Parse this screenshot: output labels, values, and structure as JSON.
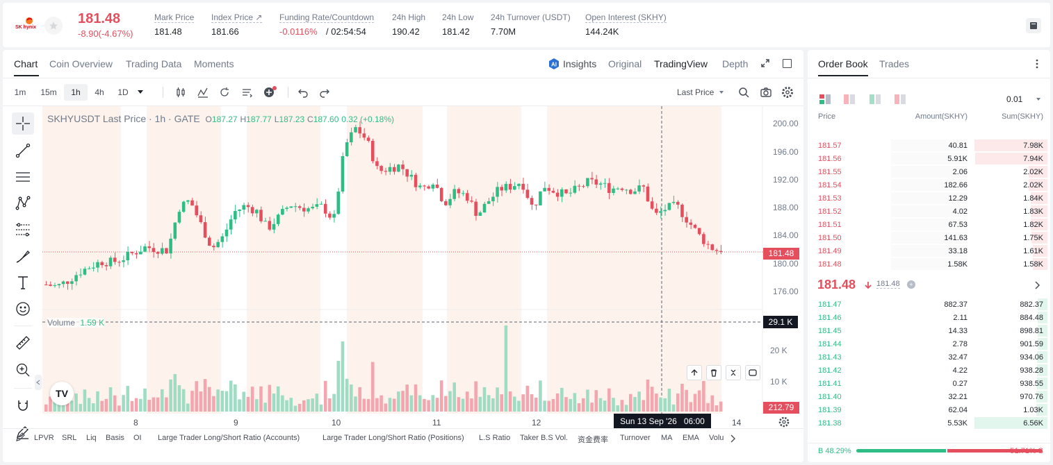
{
  "header": {
    "logo_text": "SK hynix",
    "last_price": "181.48",
    "change": "-8.90(-4.67%)",
    "stats": [
      {
        "label": "Mark Price",
        "value": "181.48"
      },
      {
        "label": "Index Price ↗",
        "value": "181.66"
      },
      {
        "label": "Funding Rate/Countdown",
        "value_a": "-0.0116%",
        "value_b": "/ 02:54:54"
      },
      {
        "label": "24h High",
        "value": "190.42"
      },
      {
        "label": "24h Low",
        "value": "181.42"
      },
      {
        "label": "24h Turnover (USDT)",
        "value": "7.70M"
      },
      {
        "label": "Open Interest (SKHY)",
        "value": "144.24K"
      }
    ]
  },
  "chart_tabs": [
    "Chart",
    "Coin Overview",
    "Trading Data",
    "Moments"
  ],
  "view_tabs": {
    "insights": "Insights",
    "original": "Original",
    "tradingview": "TradingView",
    "depth": "Depth"
  },
  "timeframes": [
    "1m",
    "15m",
    "1h",
    "4h",
    "1D"
  ],
  "selected_timeframe": "1h",
  "price_type": "Last Price",
  "legend": {
    "title": "SKHYUSDT Last Price · 1h · GATE",
    "o_label": "O",
    "o": "187.27",
    "h_label": "H",
    "h": "187.77",
    "l_label": "L",
    "l": "187.23",
    "c_label": "C",
    "c": "187.60",
    "chg": "0.32 (+0.18%)"
  },
  "volume_legend": {
    "label": "Volume",
    "value": "1.59 K"
  },
  "price_axis": [
    "200.00",
    "196.00",
    "192.00",
    "188.00",
    "184.00",
    "180.00",
    "176.00"
  ],
  "volume_axis": [
    "20 K",
    "10 K"
  ],
  "current_price_tag": "181.48",
  "volume_tag": "29.1 K",
  "volume_low_tag": "212.79",
  "time_axis": [
    "8",
    "9",
    "10",
    "11",
    "12",
    "14"
  ],
  "crosshair_time": "Sun 13 Sep '26   06:00",
  "tv_logo": "TV",
  "indicators": [
    "LPVR",
    "SRL",
    "Liq",
    "Basis",
    "OI",
    "Large Trader Long/Short Ratio (Accounts)",
    "Large Trader Long/Short Ratio (Positions)",
    "L.S Ratio",
    "Taker B.S Vol.",
    "资金费率",
    "Turnover",
    "MA",
    "EMA",
    "Volu"
  ],
  "chart_data": {
    "type": "candlestick",
    "title": "SKHYUSDT Last Price · 1h · GATE",
    "x_labels": [
      "8",
      "9",
      "10",
      "11",
      "12",
      "14"
    ],
    "ylim": [
      175,
      201
    ],
    "close_path": [
      176.8,
      176.5,
      177.4,
      178.6,
      179.4,
      180.1,
      180.0,
      180.6,
      181.4,
      182.2,
      181.9,
      181.7,
      187.8,
      188.9,
      185.4,
      182.0,
      183.6,
      187.2,
      188.1,
      187.4,
      184.8,
      186.4,
      188.3,
      187.9,
      187.6,
      188.0,
      186.0,
      196.6,
      199.3,
      197.5,
      193.0,
      193.5,
      193.9,
      192.1,
      190.5,
      191.8,
      188.5,
      190.1,
      189.6,
      186.8,
      188.8,
      190.5,
      190.9,
      191.6,
      187.7,
      191.0,
      190.2,
      189.6,
      190.5,
      191.5,
      191.3,
      190.5,
      190.9,
      190.3,
      190.7,
      186.6,
      187.7,
      188.1,
      186.0,
      183.9,
      182.2,
      181.48
    ],
    "volume": "indicative histogram, axis 0–30 K",
    "last_price": 181.48
  },
  "orderbook": {
    "tabs": [
      "Order Book",
      "Trades"
    ],
    "precision": "0.01",
    "columns": [
      "Price",
      "Amount(SKHY)",
      "Sum(SKHY)"
    ],
    "asks": [
      {
        "price": "181.57",
        "amount": "40.81",
        "sum": "7.98K",
        "depth": 1.0
      },
      {
        "price": "181.56",
        "amount": "5.91K",
        "sum": "7.94K",
        "depth": 0.995
      },
      {
        "price": "181.55",
        "amount": "2.06",
        "sum": "2.02K",
        "depth": 0.253
      },
      {
        "price": "181.54",
        "amount": "182.66",
        "sum": "2.02K",
        "depth": 0.253
      },
      {
        "price": "181.53",
        "amount": "12.29",
        "sum": "1.84K",
        "depth": 0.23
      },
      {
        "price": "181.52",
        "amount": "4.02",
        "sum": "1.83K",
        "depth": 0.229
      },
      {
        "price": "181.51",
        "amount": "67.53",
        "sum": "1.82K",
        "depth": 0.228
      },
      {
        "price": "181.50",
        "amount": "141.63",
        "sum": "1.75K",
        "depth": 0.219
      },
      {
        "price": "181.49",
        "amount": "33.18",
        "sum": "1.61K",
        "depth": 0.202
      },
      {
        "price": "181.48",
        "amount": "1.58K",
        "sum": "1.58K",
        "depth": 0.198
      }
    ],
    "mid_price": "181.48",
    "mid_mark": "181.48",
    "bids": [
      {
        "price": "181.47",
        "amount": "882.37",
        "sum": "882.37",
        "depth": 0.134
      },
      {
        "price": "181.46",
        "amount": "2.11",
        "sum": "884.48",
        "depth": 0.134
      },
      {
        "price": "181.45",
        "amount": "14.33",
        "sum": "898.81",
        "depth": 0.137
      },
      {
        "price": "181.44",
        "amount": "2.78",
        "sum": "901.59",
        "depth": 0.137
      },
      {
        "price": "181.43",
        "amount": "32.47",
        "sum": "934.06",
        "depth": 0.142
      },
      {
        "price": "181.42",
        "amount": "4.22",
        "sum": "938.28",
        "depth": 0.143
      },
      {
        "price": "181.41",
        "amount": "0.27",
        "sum": "938.55",
        "depth": 0.143
      },
      {
        "price": "181.40",
        "amount": "32.21",
        "sum": "970.76",
        "depth": 0.148
      },
      {
        "price": "181.39",
        "amount": "62.04",
        "sum": "1.03K",
        "depth": 0.157
      },
      {
        "price": "181.38",
        "amount": "5.53K",
        "sum": "6.56K",
        "depth": 1.0
      }
    ],
    "buy_ratio": "B 48.29%",
    "sell_ratio": "51.71% S",
    "buy_ratio_value": 0.4829
  },
  "colors": {
    "up": "#2ebd85",
    "down": "#e54e5d",
    "text": "#1e2329",
    "muted": "#707a8a"
  }
}
